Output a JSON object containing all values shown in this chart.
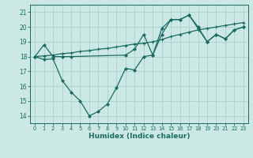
{
  "xlabel": "Humidex (Indice chaleur)",
  "bg_color": "#cce8e5",
  "grid_color": "#aacfcc",
  "line_color": "#1a6b62",
  "xlim": [
    -0.5,
    23.5
  ],
  "ylim": [
    13.5,
    21.5
  ],
  "xticks": [
    0,
    1,
    2,
    3,
    4,
    5,
    6,
    7,
    8,
    9,
    10,
    11,
    12,
    13,
    14,
    15,
    16,
    17,
    18,
    19,
    20,
    21,
    22,
    23
  ],
  "yticks": [
    14,
    15,
    16,
    17,
    18,
    19,
    20,
    21
  ],
  "line1_x": [
    0,
    1,
    2,
    3,
    4,
    10,
    11,
    12,
    13,
    14,
    15,
    16,
    17,
    18,
    19,
    20,
    21,
    22,
    23
  ],
  "line1_y": [
    18.0,
    18.8,
    18.0,
    18.0,
    18.0,
    18.1,
    18.5,
    19.5,
    18.1,
    19.9,
    20.5,
    20.5,
    20.8,
    20.0,
    19.0,
    19.5,
    19.2,
    19.8,
    20.0
  ],
  "line2_x": [
    0,
    1,
    2,
    3,
    4,
    5,
    6,
    7,
    8,
    9,
    10,
    11,
    12,
    13,
    14,
    15,
    16,
    17,
    18,
    19,
    20,
    21,
    22,
    23
  ],
  "line2_y": [
    18.0,
    18.05,
    18.1,
    18.2,
    18.25,
    18.35,
    18.4,
    18.5,
    18.55,
    18.65,
    18.75,
    18.85,
    18.9,
    19.0,
    19.15,
    19.35,
    19.5,
    19.65,
    19.8,
    19.9,
    20.0,
    20.1,
    20.2,
    20.3
  ],
  "line3_x": [
    0,
    1,
    2,
    3,
    4,
    5,
    6,
    7,
    8,
    9,
    10,
    11,
    12,
    13,
    14,
    15,
    16,
    17,
    18,
    19,
    20,
    21,
    22,
    23
  ],
  "line3_y": [
    18.0,
    17.8,
    17.85,
    16.4,
    15.6,
    15.0,
    14.0,
    14.3,
    14.8,
    15.9,
    17.2,
    17.1,
    18.0,
    18.1,
    19.5,
    20.5,
    20.5,
    20.8,
    19.9,
    19.0,
    19.5,
    19.2,
    19.8,
    20.0
  ]
}
